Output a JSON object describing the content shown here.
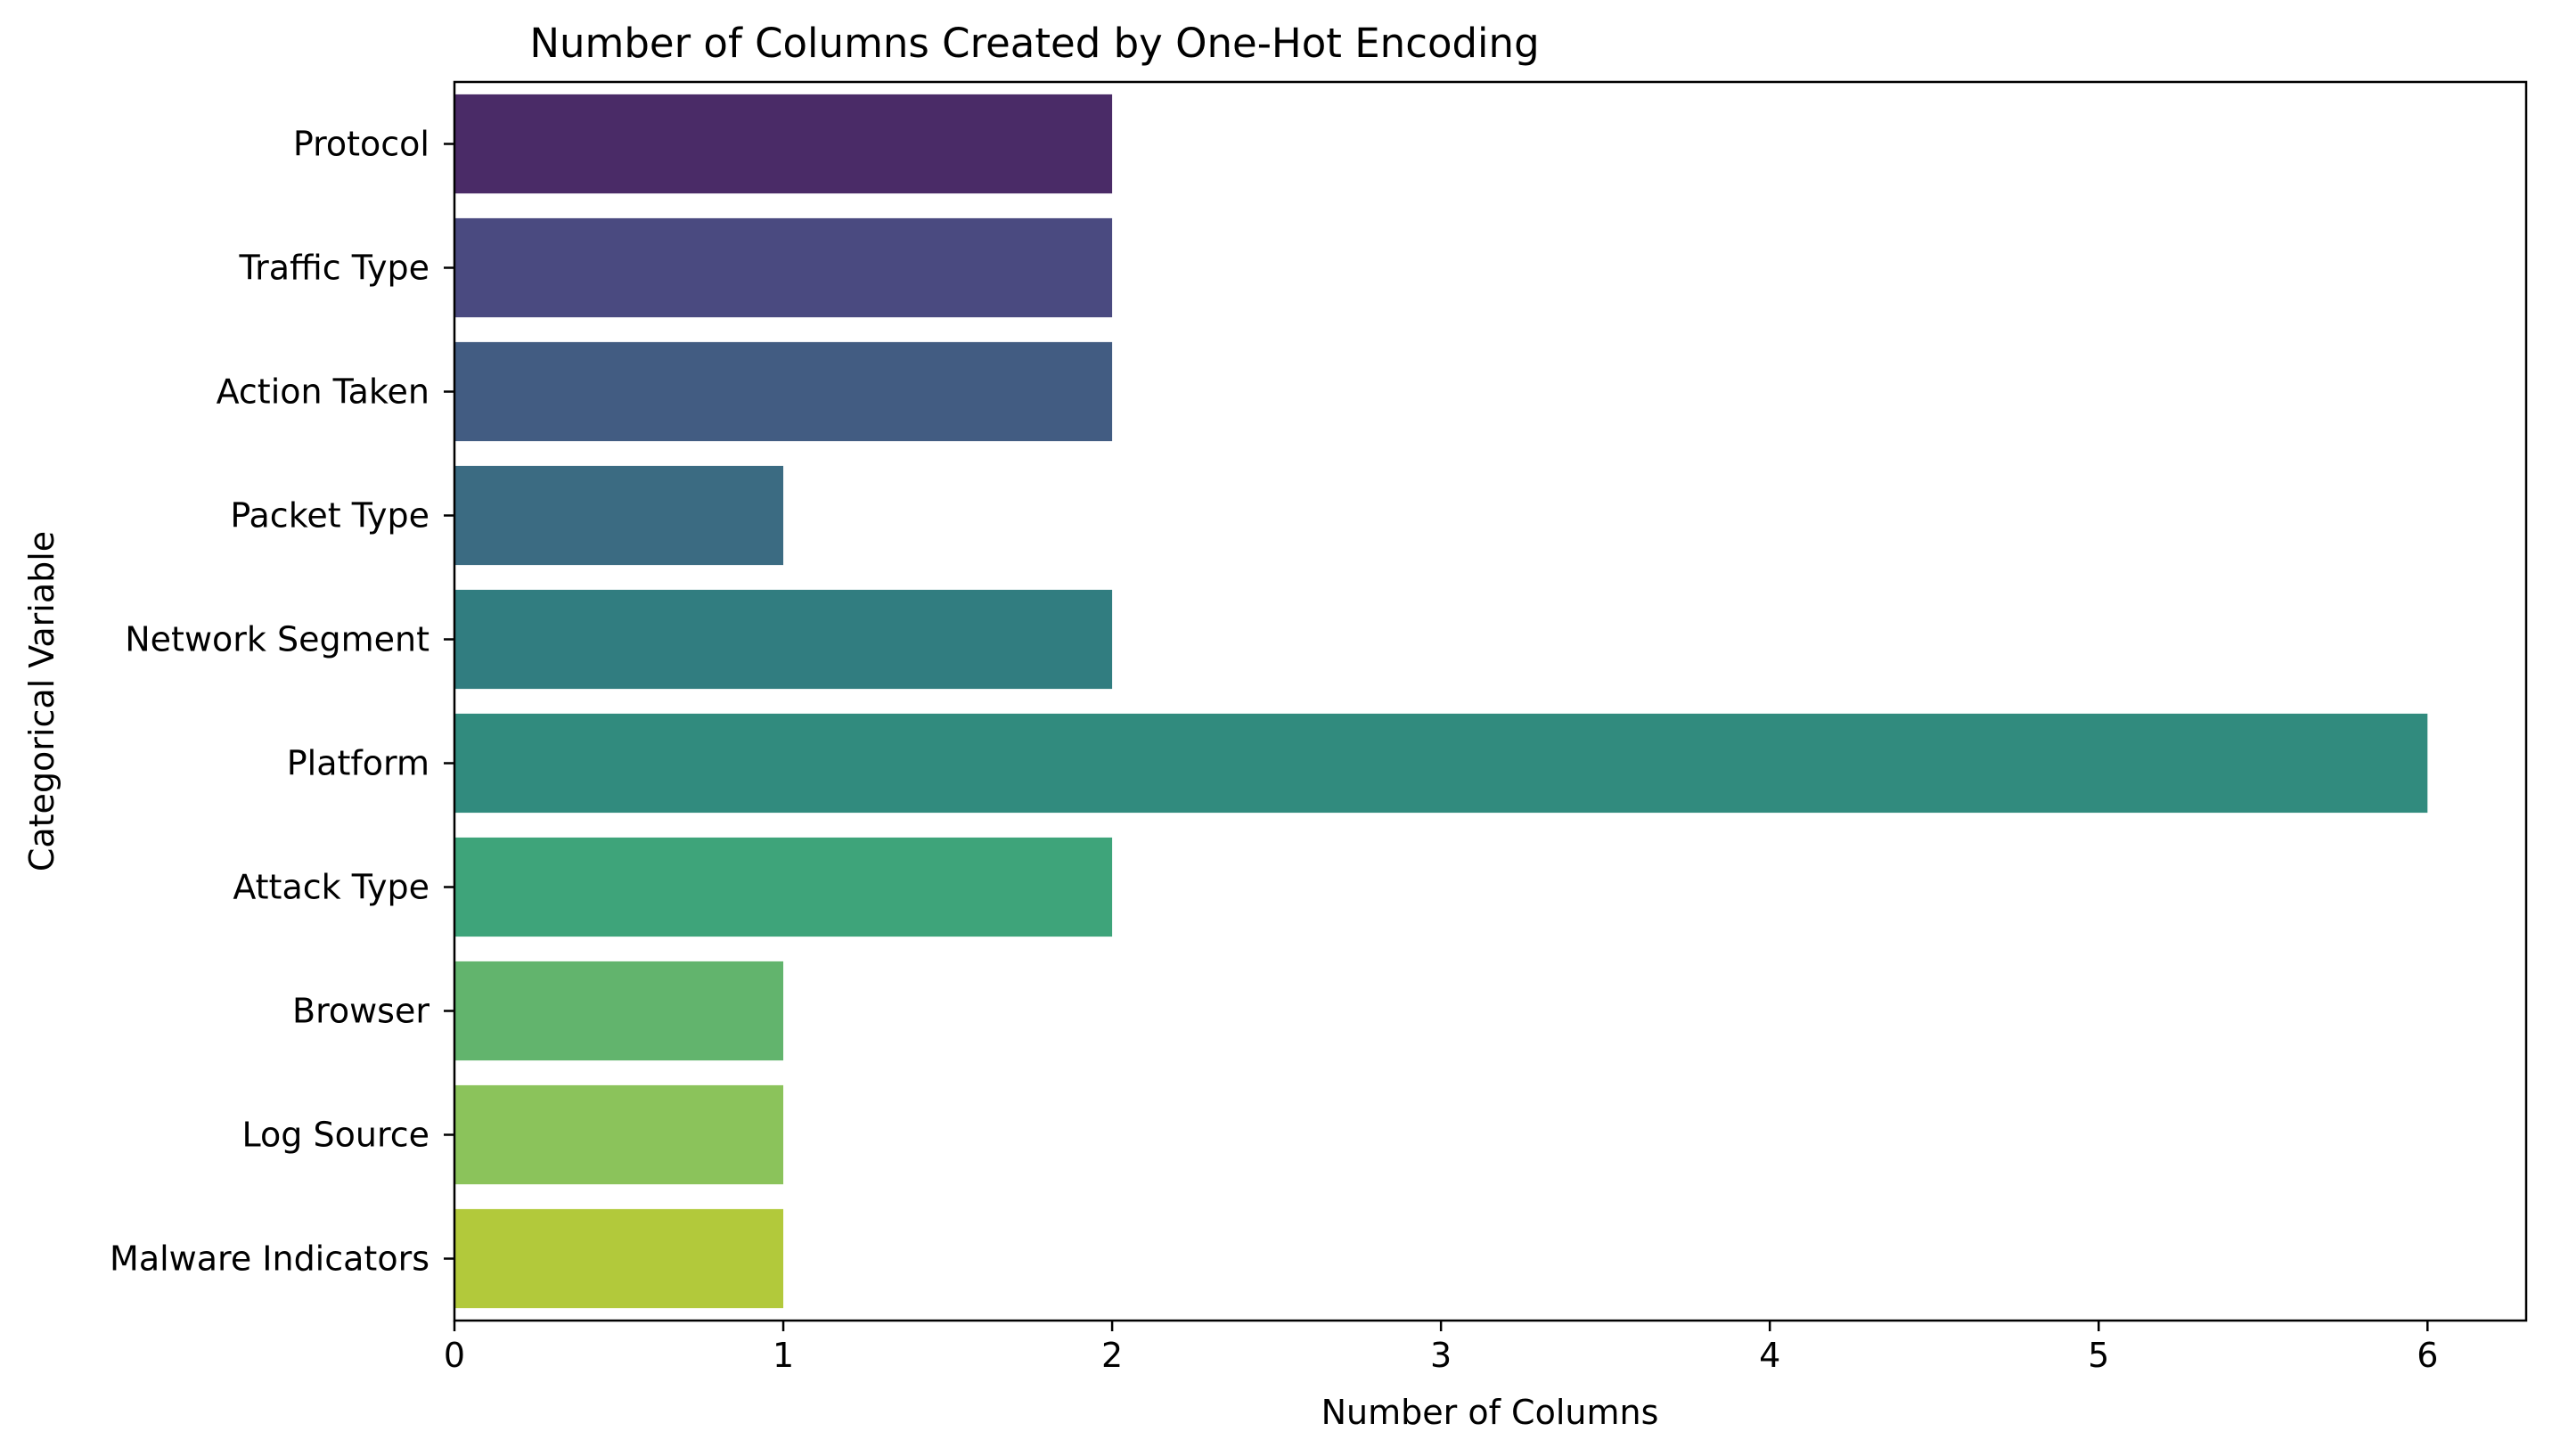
{
  "chart_data": {
    "type": "bar",
    "orientation": "horizontal",
    "title": "Number of Columns Created by One-Hot Encoding",
    "xlabel": "Number of Columns",
    "ylabel": "Categorical Variable",
    "categories": [
      "Protocol",
      "Traffic Type",
      "Action Taken",
      "Packet Type",
      "Network Segment",
      "Platform",
      "Attack Type",
      "Browser",
      "Log Source",
      "Malware Indicators"
    ],
    "values": [
      2,
      2,
      2,
      1,
      2,
      6,
      2,
      1,
      1,
      1
    ],
    "colors": [
      "#4a2b67",
      "#4a4a80",
      "#425c82",
      "#3b6b82",
      "#317d80",
      "#318b7e",
      "#3ea47a",
      "#62b46d",
      "#8bc35b",
      "#b2c93b"
    ],
    "xlim": [
      0,
      6.3
    ],
    "xticks": [
      0,
      1,
      2,
      3,
      4,
      5,
      6
    ],
    "grid": false,
    "legend": false
  }
}
